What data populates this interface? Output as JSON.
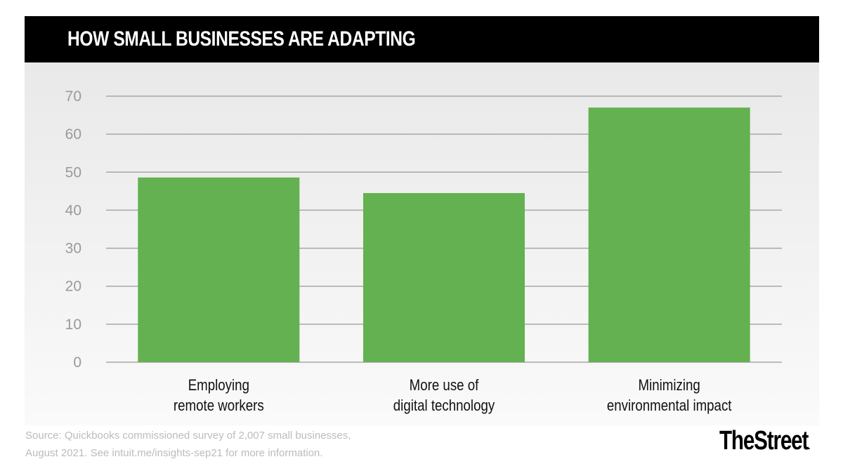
{
  "header": {
    "title": "HOW SMALL BUSINESSES ARE ADAPTING"
  },
  "footer": {
    "source_line_1": "Source: Quickbooks commissioned survey of 2,007 small businesses,",
    "source_line_2": "August 2021.  See intuit.me/insights-sep21 for more information.",
    "logo": "TheStreet",
    "logo_dot": "."
  },
  "colors": {
    "bar": "#63b150",
    "grid": "#a8a8a8",
    "header_bg": "#000000"
  },
  "chart_data": {
    "type": "bar",
    "title": "HOW SMALL BUSINESSES ARE ADAPTING",
    "xlabel": "",
    "ylabel": "",
    "categories": [
      [
        "Employing",
        "remote workers"
      ],
      [
        "More use of",
        "digital technology"
      ],
      [
        "Minimizing",
        "environmental impact"
      ]
    ],
    "values": [
      48.6,
      44.5,
      67
    ],
    "ylim": [
      0,
      70
    ],
    "yticks": [
      0,
      10,
      20,
      30,
      40,
      50,
      60,
      70
    ],
    "grid": true,
    "legend": "none"
  }
}
